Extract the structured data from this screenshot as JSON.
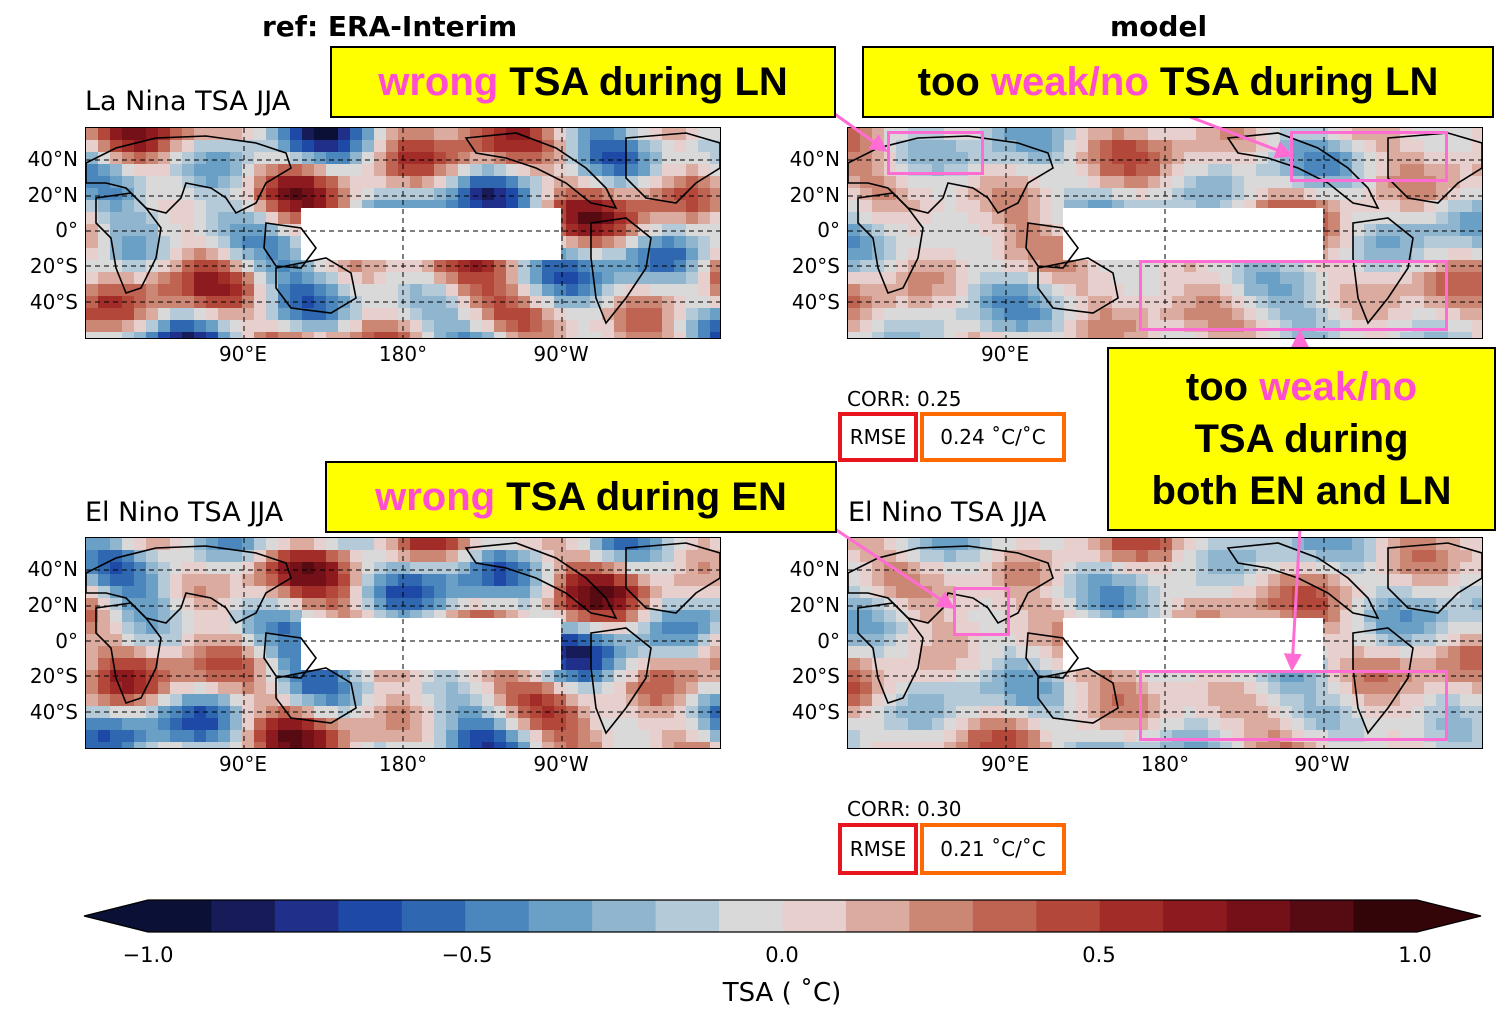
{
  "colors": {
    "callout_bg": "#ffff00",
    "emphasis_text": "#ff4fd0",
    "highlight_box": "#ff6cd4",
    "rmse_box": "#e8141e",
    "value_box": "#ff6a00",
    "land_outline": "#000000",
    "colormap": [
      "#0b1036",
      "#171c59",
      "#1f2f8a",
      "#1e49a6",
      "#2f67b1",
      "#4b86bd",
      "#6a9fc6",
      "#8fb5cf",
      "#b4cad8",
      "#d9d9d9",
      "#e6cfcc",
      "#daab9e",
      "#cc8674",
      "#bf6452",
      "#b2473a",
      "#a22d28",
      "#8d1a1e",
      "#731018",
      "#560a12",
      "#330509"
    ]
  },
  "column_titles": {
    "left": "ref: ERA-Interim",
    "right": "model"
  },
  "panels": [
    {
      "id": "ref-ln",
      "title": "La Nina TSA JJA",
      "lat_labels": [
        "40°N",
        "20°N",
        "0°",
        "20°S",
        "40°S"
      ],
      "lon_labels": [
        "90°E",
        "180°",
        "90°W"
      ]
    },
    {
      "id": "model-ln",
      "title": "",
      "lat_labels": [
        "40°N",
        "20°N",
        "0°",
        "20°S",
        "40°S"
      ],
      "lon_labels": [
        "90°E"
      ]
    },
    {
      "id": "ref-en",
      "title": "El Nino TSA JJA",
      "lat_labels": [
        "40°N",
        "20°N",
        "0°",
        "20°S",
        "40°S"
      ],
      "lon_labels": [
        "90°E",
        "180°",
        "90°W"
      ]
    },
    {
      "id": "model-en",
      "title": "El Nino TSA JJA",
      "lat_labels": [
        "40°N",
        "20°N",
        "0°",
        "20°S",
        "40°S"
      ],
      "lon_labels": [
        "90°E",
        "180°",
        "90°W"
      ]
    }
  ],
  "stats": {
    "ln": {
      "corr": "CORR: 0.25",
      "rmse_label": "RMSE",
      "rmse_value": "0.24 ˚C/˚C"
    },
    "en": {
      "corr": "CORR: 0.30",
      "rmse_label": "RMSE",
      "rmse_value": "0.21 ˚C/˚C"
    }
  },
  "callouts": {
    "wrong_ln": {
      "emph": "wrong",
      "rest": " TSA during LN"
    },
    "weak_ln": {
      "pre": "too ",
      "emph": "weak/no",
      "rest": " TSA during LN"
    },
    "wrong_en": {
      "emph": "wrong",
      "rest": " TSA during EN"
    },
    "weak_both": {
      "line1_pre": "too ",
      "line1_emph": "weak/no",
      "line2": "TSA during",
      "line3": "both EN and LN"
    }
  },
  "colorbar": {
    "label": "TSA ( ˚C)",
    "ticks": [
      "−1.0",
      "−0.5",
      "0.0",
      "0.5",
      "1.0"
    ],
    "range": [
      -1.0,
      1.0
    ],
    "levels": 20,
    "extend": "both"
  }
}
